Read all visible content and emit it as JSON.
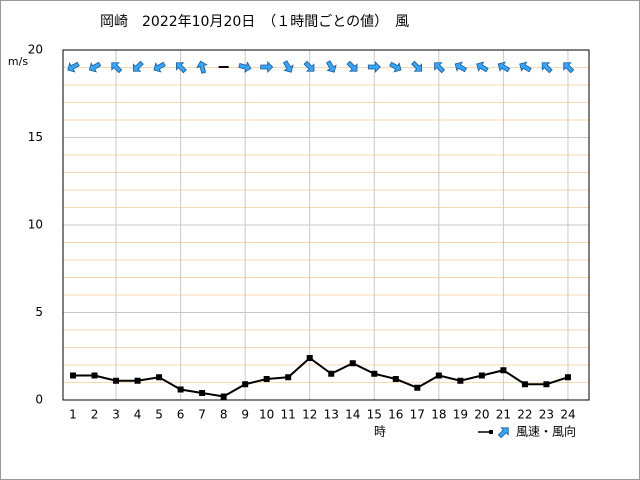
{
  "chart_data": {
    "type": "line",
    "title": "岡崎　2022年10月20日　（１時間ごとの値）　風",
    "x_label": "時",
    "y_label": "m/s",
    "categories": [
      "1",
      "2",
      "3",
      "4",
      "5",
      "6",
      "7",
      "8",
      "9",
      "10",
      "11",
      "12",
      "13",
      "14",
      "15",
      "16",
      "17",
      "18",
      "19",
      "20",
      "21",
      "22",
      "23",
      "24"
    ],
    "series": [
      {
        "name": "風速・風向",
        "color": "#000000",
        "values": [
          1.4,
          1.4,
          1.1,
          1.1,
          1.3,
          0.6,
          0.4,
          0.2,
          0.9,
          1.2,
          1.3,
          2.4,
          1.5,
          2.1,
          1.5,
          1.2,
          0.7,
          1.4,
          1.1,
          1.4,
          1.7,
          0.9,
          0.9,
          1.3
        ],
        "directions": [
          240,
          240,
          315,
          225,
          240,
          315,
          345,
          null,
          105,
          90,
          150,
          135,
          150,
          135,
          90,
          120,
          135,
          315,
          300,
          300,
          300,
          300,
          315,
          315
        ],
        "direction_color": "#33a6ff"
      }
    ],
    "ylim": [
      0,
      20
    ],
    "yticks": [
      0,
      5,
      10,
      15,
      20
    ],
    "yminorticks": [
      1,
      2,
      3,
      4,
      6,
      7,
      8,
      9,
      11,
      12,
      13,
      14,
      16,
      17,
      18,
      19
    ],
    "grid": true
  }
}
